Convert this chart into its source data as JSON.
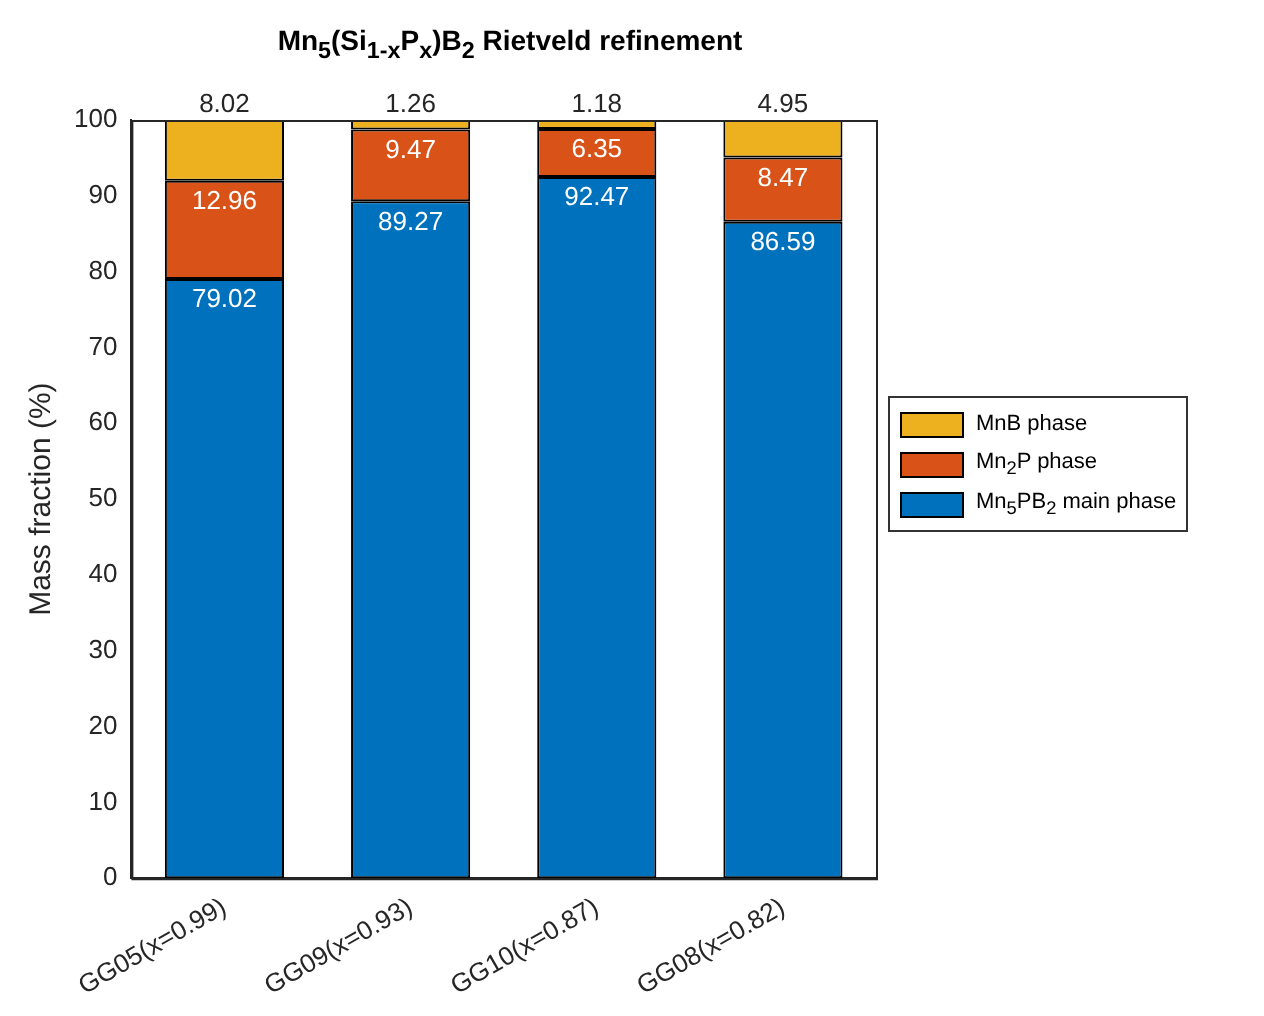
{
  "chart_data": {
    "type": "bar",
    "title": "Mn$_{5}$(Si$_{1-x}$P$_{x}$)B$_{2}$ Rietveld refinement",
    "ylabel": "Mass fraction (%)",
    "categories": [
      "GG05(x=0.99)",
      "GG09(x=0.93)",
      "GG10(x=0.87)",
      "GG08(x=0.82)"
    ],
    "stacked": true,
    "ylim": [
      0,
      100
    ],
    "yticks": [
      0,
      10,
      20,
      30,
      40,
      50,
      60,
      70,
      80,
      90,
      100
    ],
    "grid": false,
    "legend": "right",
    "data_labels": true,
    "series": [
      {
        "name": "Mn$_{5}$PB$_{2}$ main phase",
        "color": "#0072bd",
        "values": [
          79.02,
          89.27,
          92.47,
          86.59
        ]
      },
      {
        "name": "Mn$_{2}$P phase",
        "color": "#d95319",
        "values": [
          12.96,
          9.47,
          6.35,
          8.47
        ]
      },
      {
        "name": "MnB phase",
        "color": "#edb120",
        "values": [
          8.02,
          1.26,
          1.18,
          4.95
        ]
      }
    ]
  }
}
